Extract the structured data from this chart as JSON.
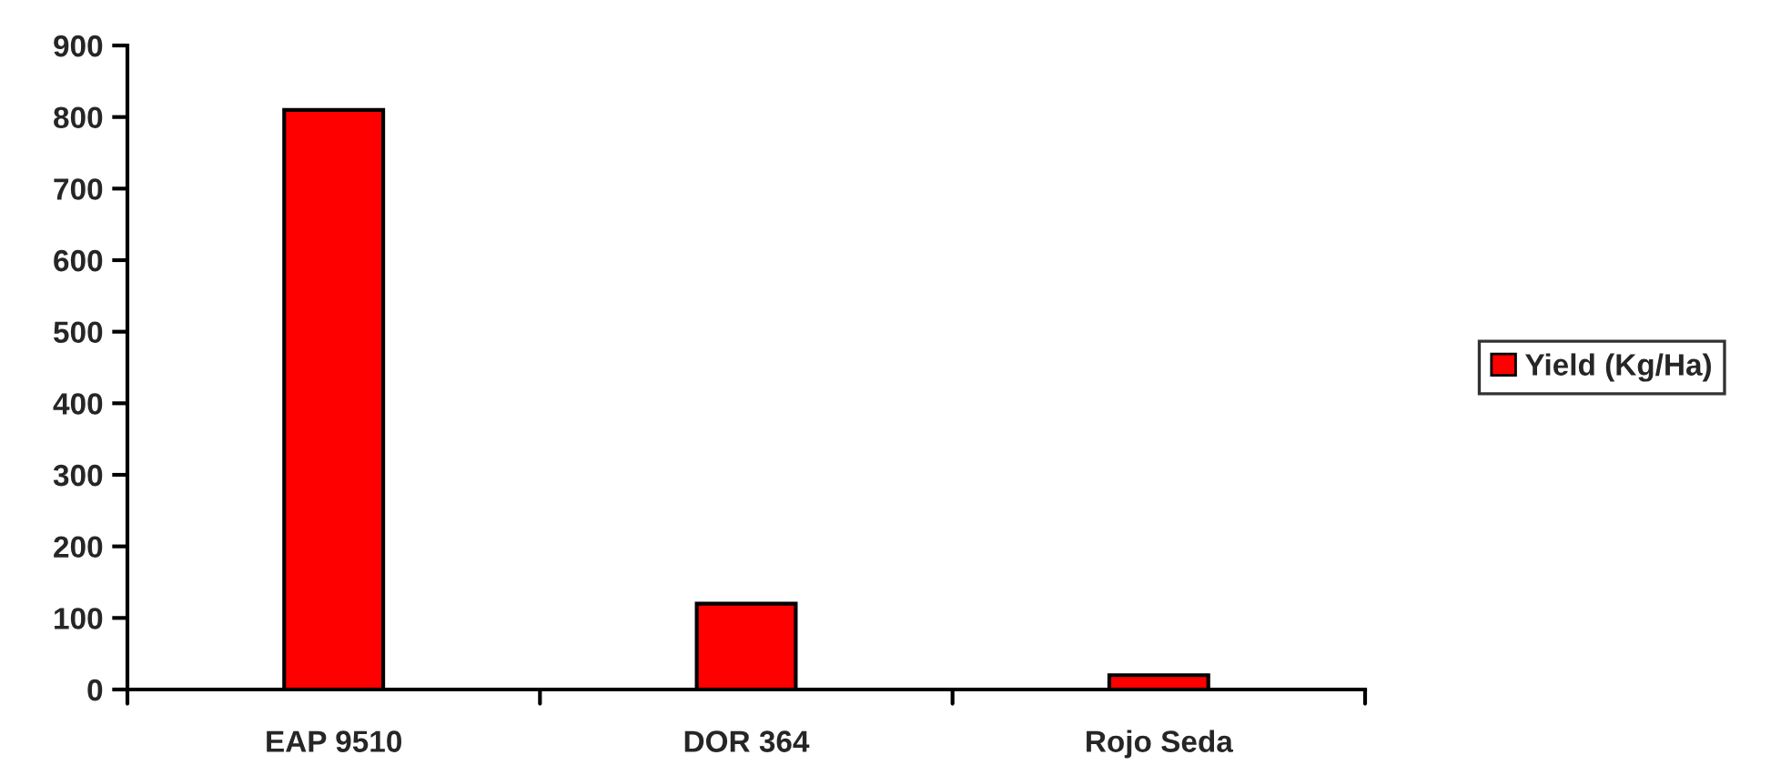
{
  "chart_data": {
    "type": "bar",
    "categories": [
      "EAP 9510",
      "DOR 364",
      "Rojo Seda"
    ],
    "series": [
      {
        "name": "Yield (Kg/Ha)",
        "color": "#ff0000",
        "values": [
          810,
          120,
          20
        ]
      }
    ],
    "ylim": [
      0,
      900
    ],
    "yticks": [
      0,
      100,
      200,
      300,
      400,
      500,
      600,
      700,
      800,
      900
    ],
    "grid": false,
    "legend": "right"
  }
}
